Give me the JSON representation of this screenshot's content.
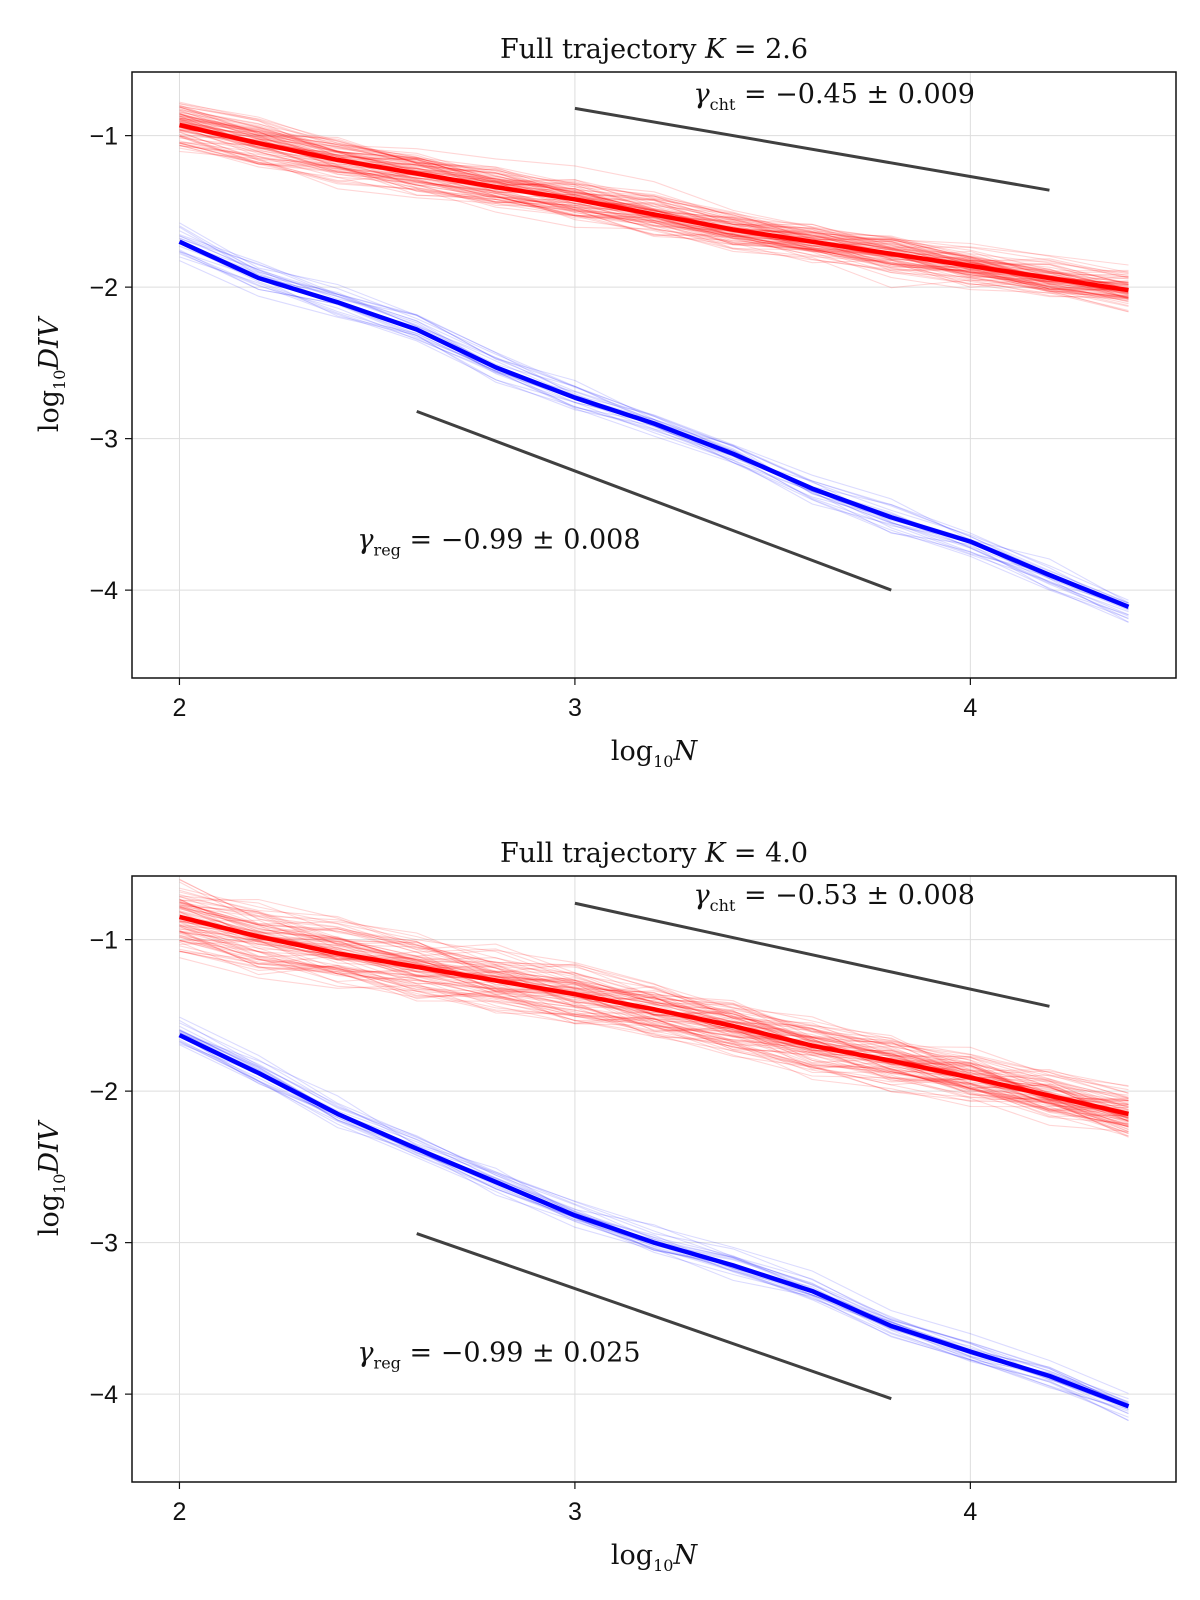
{
  "chart_data": [
    {
      "type": "line",
      "title_prefix": "Full trajectory ",
      "title_var": "K",
      "title_value": " = 2.6",
      "xlabel_base": "log",
      "xlabel_sub": "10",
      "xlabel_var": "N",
      "ylabel_base": "log",
      "ylabel_sub": "10",
      "ylabel_var": "DIV",
      "xlim": [
        1.88,
        4.52
      ],
      "ylim": [
        -4.58,
        -0.58
      ],
      "xticks": [
        2,
        3,
        4
      ],
      "xtick_labels": [
        "2",
        "3",
        "4"
      ],
      "yticks": [
        -1,
        -2,
        -3,
        -4
      ],
      "ytick_labels": [
        "−1",
        "−2",
        "−3",
        "−4"
      ],
      "grid": true,
      "x": [
        2.0,
        2.2,
        2.4,
        2.6,
        2.8,
        3.0,
        3.2,
        3.4,
        3.6,
        3.8,
        4.0,
        4.2,
        4.4
      ],
      "series": [
        {
          "color": "#ff0000",
          "values": [
            -0.93,
            -1.05,
            -1.16,
            -1.25,
            -1.34,
            -1.42,
            -1.52,
            -1.62,
            -1.7,
            -1.78,
            -1.86,
            -1.94,
            -2.02
          ]
        },
        {
          "color": "#0000ff",
          "values": [
            -1.7,
            -1.94,
            -2.1,
            -2.28,
            -2.53,
            -2.73,
            -2.9,
            -3.1,
            -3.33,
            -3.52,
            -3.68,
            -3.9,
            -4.11
          ]
        }
      ],
      "ensemble": [
        {
          "color": "#ff0000",
          "count": 90,
          "spread": 0.26
        },
        {
          "color": "#0000ff",
          "count": 22,
          "spread": 0.18
        }
      ],
      "reference_lines": [
        {
          "x": [
            3.0,
            4.2
          ],
          "y": [
            -0.82,
            -1.36
          ],
          "color": "#404040"
        },
        {
          "x": [
            2.6,
            3.8
          ],
          "y": [
            -2.82,
            -4.0
          ],
          "color": "#404040"
        }
      ],
      "annotations": [
        {
          "gamma_sub": "cht",
          "text": " = −0.45 ± 0.009",
          "x": 3.3,
          "y": -0.72
        },
        {
          "gamma_sub": "reg",
          "text": " = −0.99 ± 0.008",
          "x": 2.45,
          "y": -3.66
        }
      ]
    },
    {
      "type": "line",
      "title_prefix": "Full trajectory ",
      "title_var": "K",
      "title_value": " = 4.0",
      "xlabel_base": "log",
      "xlabel_sub": "10",
      "xlabel_var": "N",
      "ylabel_base": "log",
      "ylabel_sub": "10",
      "ylabel_var": "DIV",
      "xlim": [
        1.88,
        4.52
      ],
      "ylim": [
        -4.58,
        -0.58
      ],
      "xticks": [
        2,
        3,
        4
      ],
      "xtick_labels": [
        "2",
        "3",
        "4"
      ],
      "yticks": [
        -1,
        -2,
        -3,
        -4
      ],
      "ytick_labels": [
        "−1",
        "−2",
        "−3",
        "−4"
      ],
      "grid": true,
      "x": [
        2.0,
        2.2,
        2.4,
        2.6,
        2.8,
        3.0,
        3.2,
        3.4,
        3.6,
        3.8,
        4.0,
        4.2,
        4.4
      ],
      "series": [
        {
          "color": "#ff0000",
          "values": [
            -0.85,
            -0.98,
            -1.09,
            -1.18,
            -1.27,
            -1.36,
            -1.46,
            -1.57,
            -1.7,
            -1.8,
            -1.91,
            -2.03,
            -2.15
          ]
        },
        {
          "color": "#0000ff",
          "values": [
            -1.63,
            -1.88,
            -2.15,
            -2.38,
            -2.6,
            -2.82,
            -3.0,
            -3.15,
            -3.32,
            -3.55,
            -3.72,
            -3.88,
            -4.08
          ]
        }
      ],
      "ensemble": [
        {
          "color": "#ff0000",
          "count": 90,
          "spread": 0.36
        },
        {
          "color": "#0000ff",
          "count": 22,
          "spread": 0.16
        }
      ],
      "reference_lines": [
        {
          "x": [
            3.0,
            4.2
          ],
          "y": [
            -0.76,
            -1.44
          ],
          "color": "#404040"
        },
        {
          "x": [
            2.6,
            3.8
          ],
          "y": [
            -2.94,
            -4.03
          ],
          "color": "#404040"
        }
      ],
      "annotations": [
        {
          "gamma_sub": "cht",
          "text": " = −0.53 ± 0.008",
          "x": 3.3,
          "y": -0.7
        },
        {
          "gamma_sub": "reg",
          "text": " = −0.99 ± 0.025",
          "x": 2.45,
          "y": -3.72
        }
      ]
    }
  ]
}
